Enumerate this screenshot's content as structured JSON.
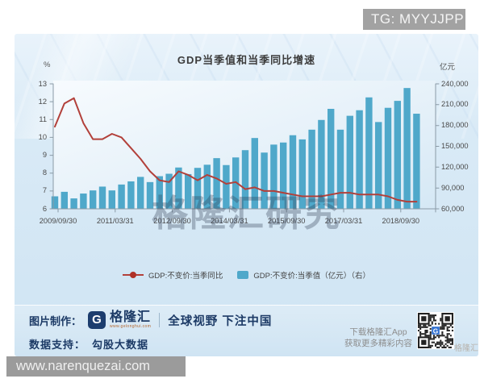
{
  "watermark_top": "TG: MYYJJPP",
  "bottom_url": "www.narenquezai.com",
  "chart": {
    "title": "GDP当季值和当季同比增速",
    "left_axis_unit": "%",
    "right_axis_unit": "亿元",
    "watermark": "格隆汇研究",
    "legend": [
      {
        "label": "GDP:不变价:当季同比",
        "color": "#b2403a",
        "marker": "line-dot"
      },
      {
        "label": "GDP:不变价:当季值（亿元）（右）",
        "color": "#4fa8ca",
        "marker": "square"
      }
    ]
  },
  "chart_data": {
    "type": "combo",
    "title": "GDP当季值和当季同比增速",
    "grid": false,
    "legend_position": "bottom",
    "x": [
      "2009/09/30",
      "2009/12/31",
      "2010/03/31",
      "2010/06/30",
      "2010/09/30",
      "2010/12/31",
      "2011/03/31",
      "2011/06/30",
      "2011/09/30",
      "2011/12/31",
      "2012/03/31",
      "2012/06/30",
      "2012/09/30",
      "2012/12/31",
      "2013/03/31",
      "2013/06/30",
      "2013/09/30",
      "2013/12/31",
      "2014/03/31",
      "2014/06/30",
      "2014/09/30",
      "2014/12/31",
      "2015/03/31",
      "2015/06/30",
      "2015/09/30",
      "2015/12/31",
      "2016/03/31",
      "2016/06/30",
      "2016/09/30",
      "2016/12/31",
      "2017/03/31",
      "2017/06/30",
      "2017/09/30",
      "2017/12/31",
      "2018/03/31",
      "2018/06/30",
      "2018/09/30",
      "2018/12/31",
      "2019/03/31"
    ],
    "x_tick_labels": [
      "2009/09/30",
      "2011/03/31",
      "2012/09/30",
      "2014/03/31",
      "2015/09/30",
      "2017/03/31",
      "2018/09/30"
    ],
    "left_axis": {
      "unit": "%",
      "min": 6,
      "max": 13,
      "ticks": [
        6,
        7,
        8,
        9,
        10,
        11,
        12,
        13
      ]
    },
    "right_axis": {
      "unit": "亿元",
      "min": 60000,
      "max": 240000,
      "ticks": [
        60000,
        90000,
        120000,
        150000,
        180000,
        210000,
        240000
      ],
      "tick_labels": [
        "60,000",
        "90,000",
        "120,000",
        "150,000",
        "180,000",
        "210,000",
        "240,000"
      ]
    },
    "series": [
      {
        "name": "GDP:不变价:当季同比",
        "type": "line",
        "axis": "left",
        "unit": "%",
        "color": "#b2403a",
        "values": [
          10.6,
          11.9,
          12.2,
          10.8,
          9.9,
          9.9,
          10.2,
          10.0,
          9.4,
          8.8,
          8.1,
          7.6,
          7.5,
          8.1,
          7.9,
          7.6,
          7.9,
          7.7,
          7.4,
          7.5,
          7.1,
          7.2,
          7.0,
          7.0,
          6.9,
          6.8,
          6.7,
          6.7,
          6.7,
          6.8,
          6.9,
          6.9,
          6.8,
          6.8,
          6.8,
          6.7,
          6.5,
          6.4,
          6.4
        ]
      },
      {
        "name": "GDP:不变价:当季值（亿元）（右）",
        "type": "bar",
        "axis": "right",
        "unit": "亿元",
        "color": "#4fa8ca",
        "values": [
          78000,
          84500,
          75000,
          82000,
          86500,
          92000,
          86500,
          95000,
          99500,
          106000,
          98500,
          107000,
          110500,
          119500,
          110000,
          119000,
          123500,
          133000,
          123000,
          134000,
          144500,
          162000,
          141000,
          152500,
          155500,
          166000,
          160000,
          174000,
          188000,
          204000,
          174000,
          194000,
          202000,
          220500,
          185000,
          205500,
          215500,
          234000,
          197000
        ]
      }
    ]
  },
  "footer": {
    "production_label": "图片制作：",
    "brand": "格隆汇",
    "brand_logo_letter": "G",
    "brand_url": "www.gelonghui.com",
    "slogan": "全球视野 下注中国",
    "data_label": "数据支持：",
    "data_source": "勾股大数据",
    "app_line1": "下载格隆汇App",
    "app_line2": "获取更多精彩内容",
    "qr_watermark": "格隆汇"
  },
  "colors": {
    "bar": "#4fa8ca",
    "line": "#b2403a",
    "brand_navy": "#1c3a66",
    "card_blue": "#d9eaf6",
    "axis_gray": "#8a9aa6",
    "watermark_gray": "#a2a2a2"
  }
}
